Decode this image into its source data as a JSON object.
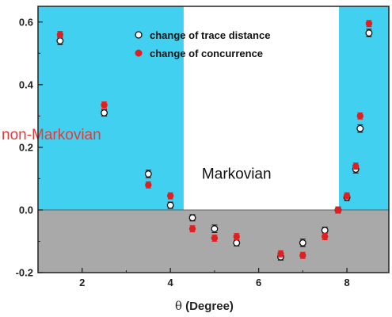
{
  "chart_data": {
    "type": "scatter",
    "title": "",
    "xlabel_symbol": "θ",
    "xlabel_unit": "(Degree)",
    "ylabel": "",
    "xlim": [
      1.0,
      8.95
    ],
    "ylim": [
      -0.2,
      0.65
    ],
    "x_ticks": [
      2,
      4,
      6,
      8
    ],
    "y_ticks": [
      -0.2,
      0.0,
      0.2,
      0.4,
      0.6
    ],
    "y_tick_labels": [
      "-0.2",
      "0.0",
      "0.2",
      "0.4",
      "0.6"
    ],
    "grid": false,
    "legend_position": "top-right",
    "regions": [
      {
        "x_start": 1.0,
        "x_end": 4.3,
        "y_start": 0.0,
        "y_end": 0.65,
        "color": "#41d0f0"
      },
      {
        "x_start": 7.82,
        "x_end": 8.95,
        "y_start": 0.0,
        "y_end": 0.65,
        "color": "#41d0f0"
      },
      {
        "x_start": 1.0,
        "x_end": 8.95,
        "y_start": -0.2,
        "y_end": 0.0,
        "color": "#a9a9a9"
      }
    ],
    "annotations": [
      {
        "text": "non-Markovian",
        "x": 1.0,
        "y": 0.225,
        "color": "#e03c3c"
      },
      {
        "text": "Markovian",
        "x": 5.5,
        "y": 0.1,
        "color": "#111111"
      }
    ],
    "series": [
      {
        "name": "change of trace distance",
        "marker": "open-circle",
        "color": "#111111",
        "x": [
          1.5,
          2.5,
          3.5,
          4.0,
          4.5,
          5.0,
          5.5,
          6.5,
          7.0,
          7.5,
          7.8,
          8.0,
          8.2,
          8.3,
          8.5
        ],
        "y": [
          0.54,
          0.31,
          0.115,
          0.015,
          -0.025,
          -0.06,
          -0.105,
          -0.15,
          -0.105,
          -0.065,
          0.0,
          0.04,
          0.13,
          0.26,
          0.565
        ],
        "err": [
          0.012,
          0.01,
          0.012,
          0.01,
          0.01,
          0.012,
          0.01,
          0.01,
          0.012,
          0.01,
          0.01,
          0.01,
          0.012,
          0.012,
          0.012
        ]
      },
      {
        "name": "change of concurrence",
        "marker": "filled-circle",
        "color": "#e02020",
        "x": [
          1.5,
          2.5,
          3.5,
          4.0,
          4.5,
          5.0,
          5.5,
          6.5,
          7.0,
          7.5,
          7.8,
          8.0,
          8.2,
          8.3,
          8.5
        ],
        "y": [
          0.56,
          0.335,
          0.08,
          0.045,
          -0.06,
          -0.09,
          -0.085,
          -0.14,
          -0.145,
          -0.085,
          0.0,
          0.045,
          0.14,
          0.3,
          0.595
        ],
        "err": [
          0.01,
          0.01,
          0.01,
          0.01,
          0.01,
          0.01,
          0.01,
          0.01,
          0.01,
          0.01,
          0.01,
          0.01,
          0.01,
          0.01,
          0.01
        ]
      }
    ]
  }
}
